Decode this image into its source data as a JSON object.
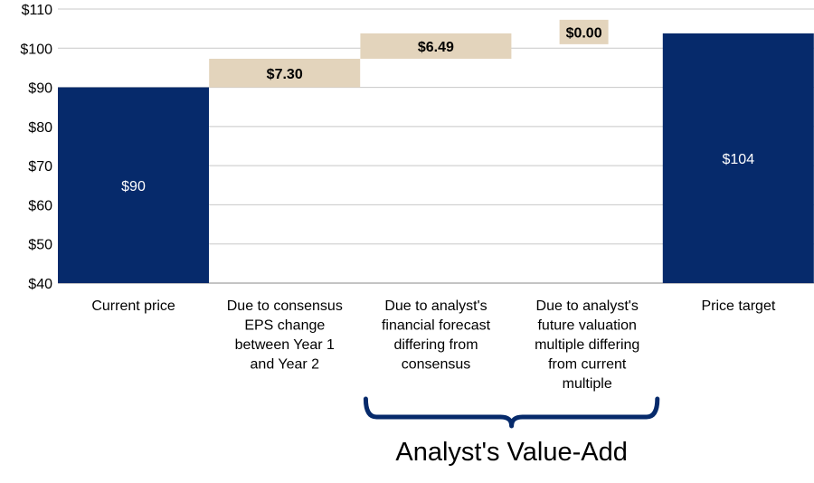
{
  "chart_data": {
    "type": "waterfall",
    "y_unit_prefix": "$",
    "ylim": [
      40,
      110
    ],
    "yticks": [
      40,
      50,
      60,
      70,
      80,
      90,
      100,
      110
    ],
    "ytick_labels": [
      "$40",
      "$50",
      "$60",
      "$70",
      "$80",
      "$90",
      "$100",
      "$110"
    ],
    "grid": true,
    "categories": [
      [
        "Current price"
      ],
      [
        "Due to consensus",
        "EPS change",
        "between Year 1",
        "and Year 2"
      ],
      [
        "Due to analyst's",
        "financial forecast",
        "differing from",
        "consensus"
      ],
      [
        "Due to analyst's",
        "future valuation",
        "multiple differing",
        "from current",
        "multiple"
      ],
      [
        "Price target"
      ]
    ],
    "bars": [
      {
        "kind": "total",
        "start": 0,
        "value": 90,
        "label": "$90"
      },
      {
        "kind": "delta",
        "start": 90,
        "value": 7.3,
        "label": "$7.30"
      },
      {
        "kind": "delta",
        "start": 97.3,
        "value": 6.49,
        "label": "$6.49"
      },
      {
        "kind": "delta",
        "start": 103.79,
        "value": 0.0,
        "label": "$0.00"
      },
      {
        "kind": "total",
        "start": 0,
        "value": 103.79,
        "label": "$104"
      }
    ],
    "colors": {
      "total": "#062a6b",
      "delta": "#e3d4bc",
      "bracket": "#062a6b",
      "grid": "#c8c8c8",
      "axis": "#888888"
    },
    "annotation": {
      "text": "Analyst's Value-Add",
      "spans": [
        2,
        3
      ]
    }
  }
}
